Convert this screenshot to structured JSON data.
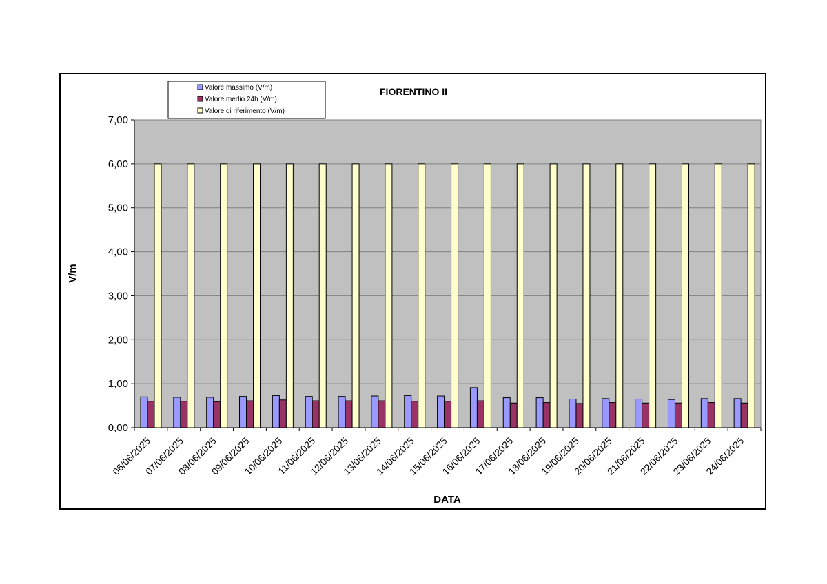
{
  "chart_data": {
    "type": "bar",
    "title": "FIORENTINO II",
    "xlabel": "DATA",
    "ylabel": "V/m",
    "ylim": [
      0,
      7
    ],
    "yticks": [
      "0,00",
      "1,00",
      "2,00",
      "3,00",
      "4,00",
      "5,00",
      "6,00",
      "7,00"
    ],
    "grid": true,
    "legend_position": "top-left",
    "categories": [
      "06/06/2025",
      "07/06/2025",
      "08/06/2025",
      "09/06/2025",
      "10/06/2025",
      "11/06/2025",
      "12/06/2025",
      "13/06/2025",
      "14/06/2025",
      "15/06/2025",
      "16/06/2025",
      "17/06/2025",
      "18/06/2025",
      "19/06/2025",
      "20/06/2025",
      "21/06/2025",
      "22/06/2025",
      "23/06/2025",
      "24/06/2025"
    ],
    "series": [
      {
        "name": "Valore massimo (V/m)",
        "color": "#9999ff",
        "values": [
          0.7,
          0.69,
          0.69,
          0.71,
          0.73,
          0.71,
          0.71,
          0.72,
          0.73,
          0.72,
          0.91,
          0.68,
          0.68,
          0.65,
          0.66,
          0.65,
          0.64,
          0.66,
          0.66
        ]
      },
      {
        "name": "Valore medio 24h (V/m)",
        "color": "#993366",
        "values": [
          0.6,
          0.6,
          0.59,
          0.61,
          0.63,
          0.61,
          0.61,
          0.61,
          0.6,
          0.6,
          0.61,
          0.56,
          0.57,
          0.55,
          0.57,
          0.56,
          0.56,
          0.57,
          0.56
        ]
      },
      {
        "name": "Valore di riferimento (V/m)",
        "color": "#ffffcc",
        "values": [
          6,
          6,
          6,
          6,
          6,
          6,
          6,
          6,
          6,
          6,
          6,
          6,
          6,
          6,
          6,
          6,
          6,
          6,
          6
        ]
      }
    ],
    "colors": {
      "plot_background": "#c0c0c0",
      "grid": "#808080"
    }
  }
}
